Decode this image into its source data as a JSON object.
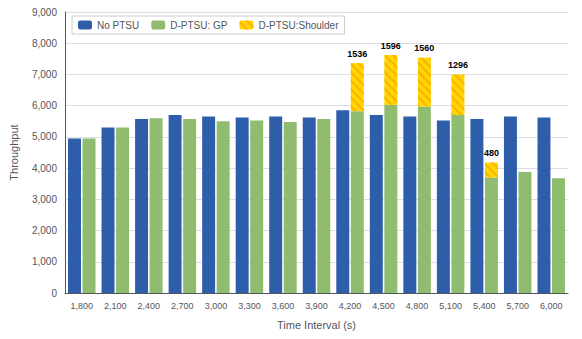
{
  "chart_data": {
    "type": "bar",
    "x_label": "Time Interval (s)",
    "y_label": "Throughput",
    "categories": [
      "1,800",
      "2,100",
      "2,400",
      "2,700",
      "3,000",
      "3,300",
      "3,600",
      "3,900",
      "4,200",
      "4,500",
      "4,800",
      "5,100",
      "5,400",
      "5,700",
      "6,000"
    ],
    "series": [
      {
        "name": "No PTSU",
        "color": "#2E5EAA",
        "values": [
          4950,
          5300,
          5575,
          5700,
          5650,
          5625,
          5650,
          5625,
          5850,
          5700,
          5650,
          5525,
          5575,
          5650,
          5625
        ]
      },
      {
        "name": "D-PTSU: GP",
        "color": "#8FBC6E",
        "stacked": true,
        "values": [
          4950,
          5300,
          5600,
          5575,
          5500,
          5525,
          5475,
          5575,
          5825,
          6025,
          5975,
          5700,
          3700,
          3875,
          3675
        ]
      },
      {
        "name": "D-PTSU:Shoulder",
        "color": "#FFD700",
        "stacked": true,
        "values": [
          0,
          0,
          0,
          0,
          0,
          0,
          0,
          0,
          1536,
          1596,
          1560,
          1296,
          480,
          0,
          0
        ],
        "value_labels": [
          null,
          null,
          null,
          null,
          null,
          null,
          null,
          null,
          "1536",
          "1596",
          "1560",
          "1296",
          "480",
          null,
          null
        ]
      }
    ],
    "ylim": [
      0,
      9000
    ],
    "yticks": [
      0,
      {
        "value": 1000,
        "label": "1,000"
      },
      {
        "value": 2000,
        "label": "2,000"
      },
      {
        "value": 3000,
        "label": "3,000"
      },
      {
        "value": 4000,
        "label": "4,000"
      },
      {
        "value": 5000,
        "label": "5,000"
      },
      {
        "value": 6000,
        "label": "6,000"
      },
      {
        "value": 7000,
        "label": "7,000"
      },
      {
        "value": 8000,
        "label": "8,000"
      },
      {
        "value": 9000,
        "label": "9,000"
      }
    ],
    "grid": true,
    "legend": "upper left"
  }
}
